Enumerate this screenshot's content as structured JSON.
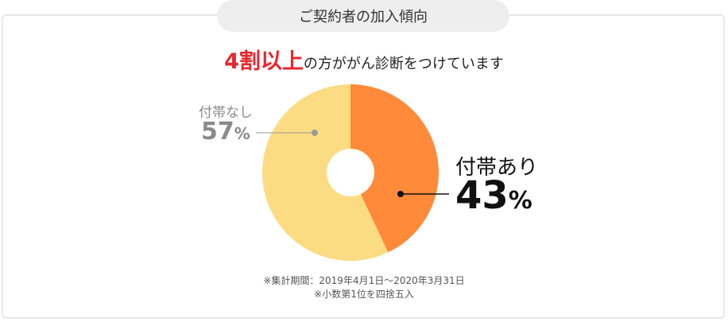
{
  "header": {
    "badge_text": "ご契約者の加入傾向"
  },
  "headline": {
    "emphasis": "4割以上",
    "rest": "の方ががん診断をつけています"
  },
  "chart_data": {
    "type": "pie",
    "donut": true,
    "start": "12 o'clock, clockwise",
    "slices": [
      {
        "label": "付帯あり",
        "value": 43,
        "unit": "%",
        "color": "#ff8a3a"
      },
      {
        "label": "付帯なし",
        "value": 57,
        "unit": "%",
        "color": "#fcdc82"
      }
    ]
  },
  "labels": {
    "with": {
      "name": "付帯あり",
      "value": "43",
      "unit": "%"
    },
    "without": {
      "name": "付帯なし",
      "value": "57",
      "unit": "%"
    }
  },
  "notes": {
    "period": "※集計期間：2019年4月1日～2020年3月31日",
    "rounding": "※小数第1位を四捨五入"
  },
  "colors": {
    "emphasis": "#e8262d",
    "badge_bg": "#eeeeee",
    "panel_border": "#e8e8e8",
    "leader_with": "#111111",
    "leader_without": "#999999"
  }
}
